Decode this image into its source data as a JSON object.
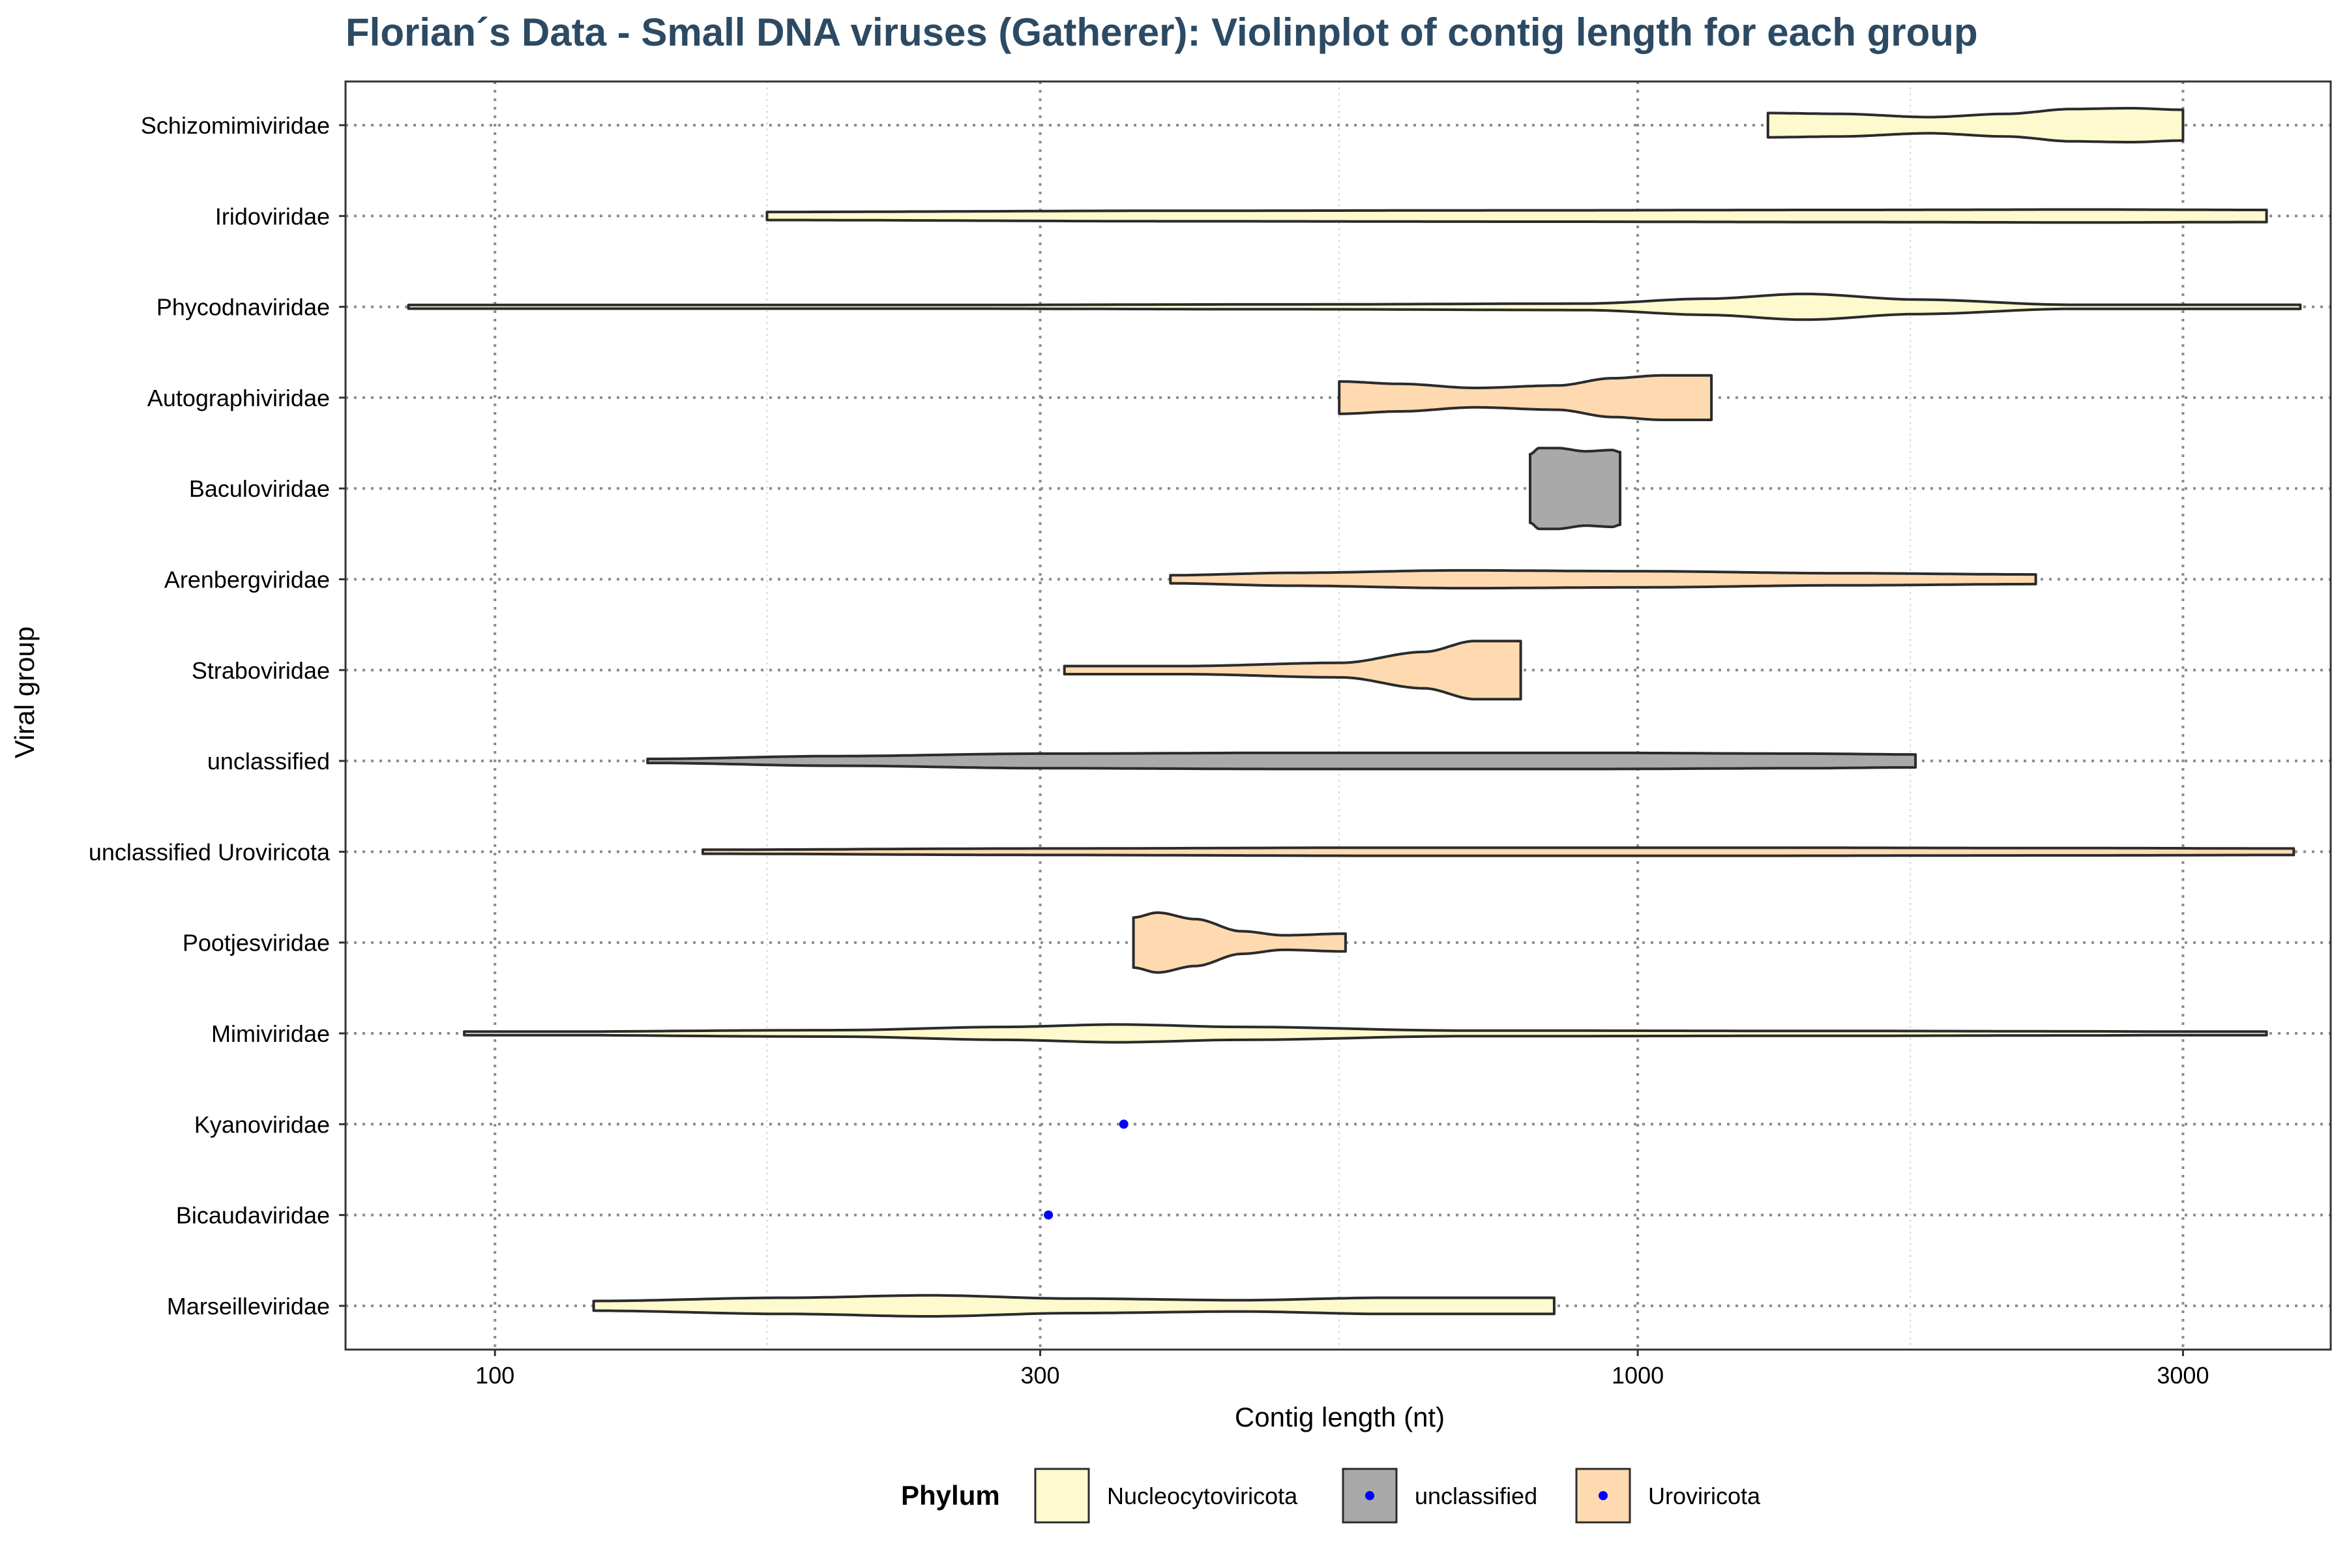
{
  "chart_data": {
    "type": "violin",
    "orientation": "horizontal",
    "title": "Florian´s Data - Small DNA viruses (Gatherer): Violinplot of contig length for each group",
    "xlabel": "Contig length (nt)",
    "ylabel": "Viral group",
    "x_scale": "log10",
    "xlim": [
      74,
      4040
    ],
    "x_ticks": [
      100,
      300,
      1000,
      3000
    ],
    "x_tick_labels": [
      "100",
      "300",
      "1000",
      "3000"
    ],
    "x_minor_ticks": [
      173,
      548,
      1732
    ],
    "grid": true,
    "legend": {
      "title": "Phylum",
      "position": "bottom",
      "entries": [
        {
          "label": "Nucleocytoviricota",
          "fill": "#FFFACD",
          "point": false
        },
        {
          "label": "unclassified",
          "fill": "#A9A9A9",
          "point": true
        },
        {
          "label": "Uroviricota",
          "fill": "#FFDAB0",
          "point": true
        }
      ]
    },
    "colors": {
      "Nucleocytoviricota": "#FFFACD",
      "unclassified": "#A9A9A9",
      "Uroviricota": "#FFDAB0",
      "point": "#0000FF",
      "outline": "#2b2b2b",
      "title": "#2C4A63"
    },
    "groups": [
      {
        "name": "Schizomimiviridae",
        "phylum": "Nucleocytoviricota",
        "min": 1300,
        "max": 3000,
        "density": [
          [
            1300,
            0.3
          ],
          [
            1500,
            0.28
          ],
          [
            1800,
            0.2
          ],
          [
            2100,
            0.28
          ],
          [
            2400,
            0.4
          ],
          [
            2700,
            0.42
          ],
          [
            3000,
            0.38
          ]
        ]
      },
      {
        "name": "Iridoviridae",
        "phylum": "Nucleocytoviricota",
        "min": 173,
        "max": 3550,
        "density": [
          [
            173,
            0.1
          ],
          [
            400,
            0.13
          ],
          [
            800,
            0.14
          ],
          [
            1500,
            0.15
          ],
          [
            2500,
            0.16
          ],
          [
            3550,
            0.15
          ]
        ]
      },
      {
        "name": "Phycodnaviridae",
        "phylum": "Nucleocytoviricota",
        "min": 84,
        "max": 3800,
        "density": [
          [
            84,
            0.02
          ],
          [
            200,
            0.04
          ],
          [
            500,
            0.06
          ],
          [
            900,
            0.08
          ],
          [
            1150,
            0.2
          ],
          [
            1400,
            0.32
          ],
          [
            1750,
            0.18
          ],
          [
            2400,
            0.05
          ],
          [
            3800,
            0.05
          ]
        ]
      },
      {
        "name": "Autographiviridae",
        "phylum": "Uroviricota",
        "min": 548,
        "max": 1160,
        "density": [
          [
            548,
            0.4
          ],
          [
            620,
            0.34
          ],
          [
            720,
            0.24
          ],
          [
            850,
            0.3
          ],
          [
            950,
            0.48
          ],
          [
            1050,
            0.55
          ],
          [
            1160,
            0.55
          ]
        ]
      },
      {
        "name": "Baculoviridae",
        "phylum": "unclassified",
        "min": 805,
        "max": 965,
        "density": [
          [
            805,
            0.85
          ],
          [
            820,
            1.0
          ],
          [
            850,
            1.0
          ],
          [
            900,
            0.92
          ],
          [
            950,
            0.95
          ],
          [
            965,
            0.9
          ]
        ]
      },
      {
        "name": "Arenbergviridae",
        "phylum": "Uroviricota",
        "min": 390,
        "max": 2230,
        "density": [
          [
            390,
            0.1
          ],
          [
            500,
            0.16
          ],
          [
            700,
            0.22
          ],
          [
            1000,
            0.2
          ],
          [
            1500,
            0.15
          ],
          [
            2230,
            0.12
          ]
        ]
      },
      {
        "name": "Straboviridae",
        "phylum": "Uroviricota",
        "min": 315,
        "max": 790,
        "density": [
          [
            315,
            0.1
          ],
          [
            400,
            0.1
          ],
          [
            550,
            0.18
          ],
          [
            650,
            0.45
          ],
          [
            720,
            0.72
          ],
          [
            790,
            0.72
          ]
        ]
      },
      {
        "name": "unclassified",
        "phylum": "unclassified",
        "min": 136,
        "max": 1750,
        "density": [
          [
            136,
            0.05
          ],
          [
            200,
            0.12
          ],
          [
            300,
            0.18
          ],
          [
            500,
            0.2
          ],
          [
            900,
            0.2
          ],
          [
            1400,
            0.18
          ],
          [
            1750,
            0.16
          ]
        ]
      },
      {
        "name": "unclassified Uroviricota",
        "phylum": "Uroviricota",
        "min": 152,
        "max": 3750,
        "density": [
          [
            152,
            0.05
          ],
          [
            300,
            0.08
          ],
          [
            600,
            0.1
          ],
          [
            1200,
            0.1
          ],
          [
            2500,
            0.09
          ],
          [
            3750,
            0.08
          ]
        ]
      },
      {
        "name": "Pootjesviridae",
        "phylum": "Uroviricota",
        "min": 362,
        "max": 555,
        "density": [
          [
            362,
            0.62
          ],
          [
            380,
            0.74
          ],
          [
            410,
            0.58
          ],
          [
            450,
            0.28
          ],
          [
            490,
            0.18
          ],
          [
            555,
            0.22
          ]
        ]
      },
      {
        "name": "Mimiviridae",
        "phylum": "Nucleocytoviricota",
        "min": 94,
        "max": 3550,
        "density": [
          [
            94,
            0.03
          ],
          [
            200,
            0.08
          ],
          [
            280,
            0.16
          ],
          [
            350,
            0.22
          ],
          [
            450,
            0.16
          ],
          [
            700,
            0.07
          ],
          [
            1500,
            0.06
          ],
          [
            2500,
            0.05
          ],
          [
            3550,
            0.03
          ]
        ]
      },
      {
        "name": "Kyanoviridae",
        "phylum": "Uroviricota",
        "value": 355
      },
      {
        "name": "Bicaudaviridae",
        "phylum": "Uroviricota",
        "value": 305
      },
      {
        "name": "Marseilleviridae",
        "phylum": "Nucleocytoviricota",
        "min": 122,
        "max": 845,
        "density": [
          [
            122,
            0.12
          ],
          [
            180,
            0.2
          ],
          [
            240,
            0.26
          ],
          [
            320,
            0.18
          ],
          [
            450,
            0.14
          ],
          [
            600,
            0.2
          ],
          [
            845,
            0.2
          ]
        ]
      }
    ]
  }
}
